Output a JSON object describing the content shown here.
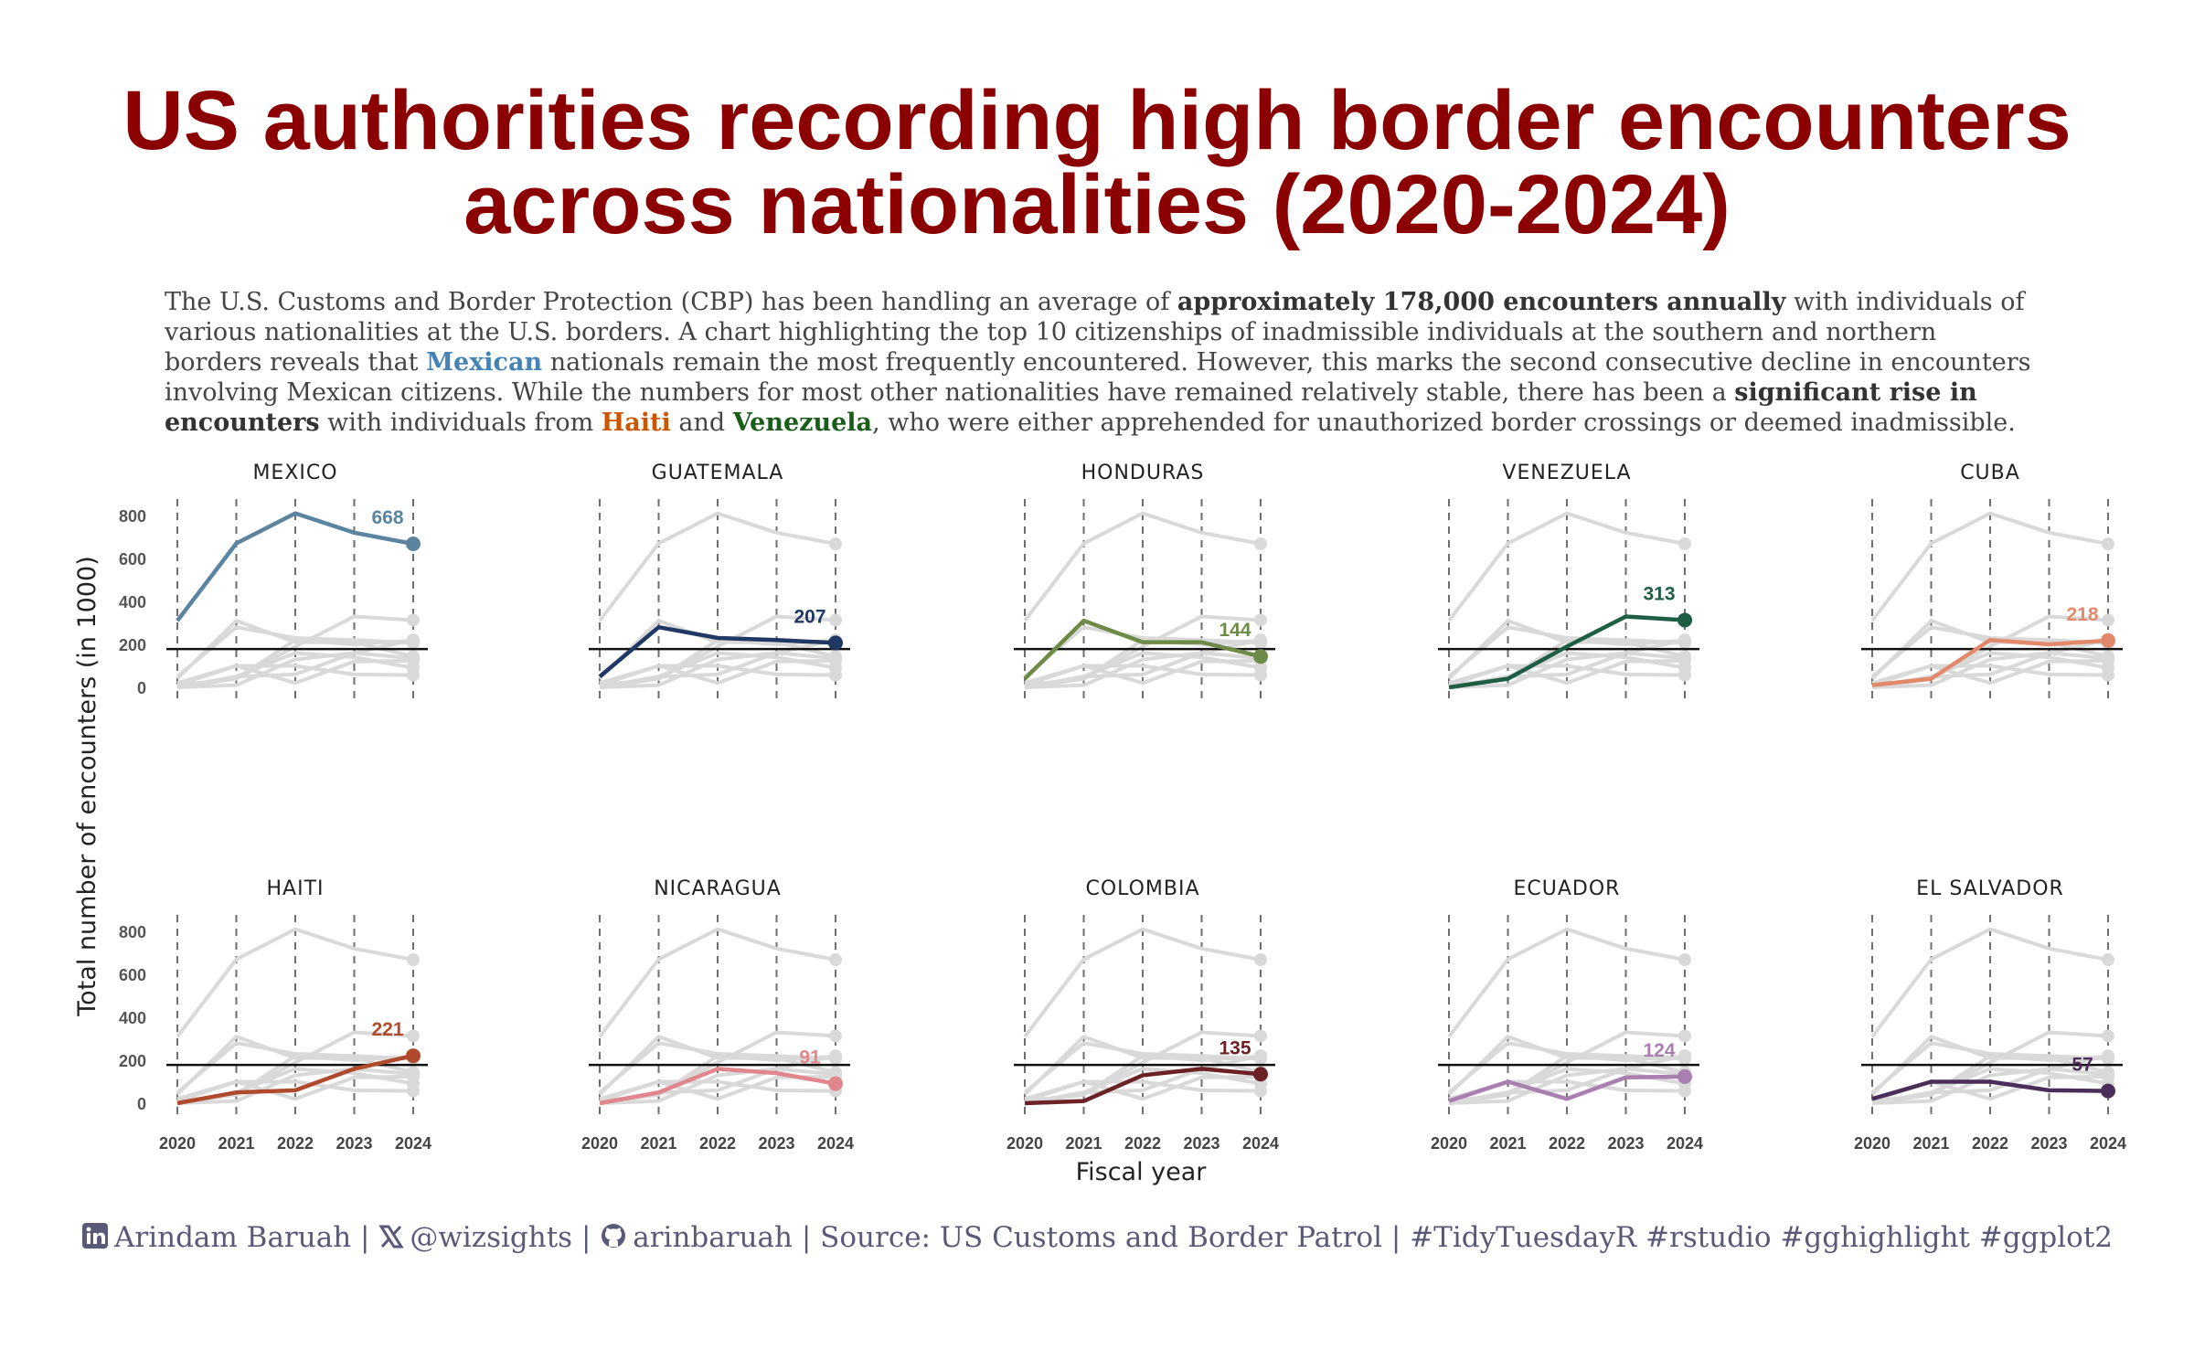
{
  "title_lines": [
    "US authorities recording high border encounters",
    "across nationalities (2020-2024)"
  ],
  "subtitle": {
    "l1a": "The U.S. Customs and Border Protection (CBP) has been handling an average of ",
    "l1b": "approximately 178,000 encounters annually",
    "l1c": " with individuals of",
    "l2": "various nationalities at the U.S. borders. A chart highlighting the top 10 citizenships of inadmissible individuals at the southern and northern",
    "l3a": "borders reveals that ",
    "l3b": "Mexican",
    "l3c": " nationals remain the most frequently encountered. However, this marks the second consecutive decline in encounters",
    "l4a": "involving Mexican citizens. While the numbers for most other nationalities have remained relatively stable, there has been a ",
    "l4b": "significant rise in",
    "l5a": "encounters",
    "l5b": " with individuals from ",
    "l5c": "Haiti",
    "l5d": " and ",
    "l5e": "Venezuela",
    "l5f": ", who were either apprehended for unauthorized border crossings or deemed inadmissible."
  },
  "caption": {
    "linkedin_icon": "linkedin-icon",
    "name": "Arindam Baruah",
    "x_icon": "x-icon",
    "x_handle": "@wizsights",
    "github_icon": "github-icon",
    "github": "arinbaruah",
    "source": "Source: US Customs and Border Patrol",
    "tags": "#TidyTuesdayR #rstudio #gghighlight #ggplot2"
  },
  "chart_data": {
    "type": "line",
    "xlabel": "Fiscal year",
    "ylabel": "Total number of encounters (in 1000)",
    "x": [
      2020,
      2021,
      2022,
      2023,
      2024
    ],
    "y_ticks": [
      0,
      200,
      400,
      600,
      800
    ],
    "ylim": [
      0,
      800
    ],
    "reference_line_y": 178,
    "grid": "vertical dashed lines at each year",
    "background_series_color": "#d9d9d9",
    "series": [
      {
        "name": "MEXICO",
        "values": [
          310,
          670,
          810,
          720,
          668
        ],
        "label": "668",
        "color": "#5b84a0"
      },
      {
        "name": "GUATEMALA",
        "values": [
          50,
          280,
          230,
          220,
          207
        ],
        "label": "207",
        "color": "#1f3864"
      },
      {
        "name": "HONDURAS",
        "values": [
          40,
          310,
          210,
          210,
          144
        ],
        "label": "144",
        "color": "#6d8b47"
      },
      {
        "name": "VENEZUELA",
        "values": [
          0,
          40,
          190,
          330,
          313
        ],
        "label": "313",
        "color": "#1e5e45"
      },
      {
        "name": "CUBA",
        "values": [
          10,
          40,
          220,
          200,
          218
        ],
        "label": "218",
        "color": "#e2896c"
      },
      {
        "name": "HAITI",
        "values": [
          0,
          50,
          60,
          160,
          221
        ],
        "label": "221",
        "color": "#b04a2c"
      },
      {
        "name": "NICARAGUA",
        "values": [
          0,
          50,
          160,
          140,
          91
        ],
        "label": "91",
        "color": "#e0868c"
      },
      {
        "name": "COLOMBIA",
        "values": [
          0,
          10,
          130,
          160,
          135
        ],
        "label": "135",
        "color": "#6b2125"
      },
      {
        "name": "ECUADOR",
        "values": [
          10,
          100,
          20,
          120,
          124
        ],
        "label": "124",
        "color": "#a97fb0"
      },
      {
        "name": "EL SALVADOR",
        "values": [
          20,
          100,
          100,
          60,
          57
        ],
        "label": "57",
        "color": "#4b2d5a"
      }
    ]
  }
}
